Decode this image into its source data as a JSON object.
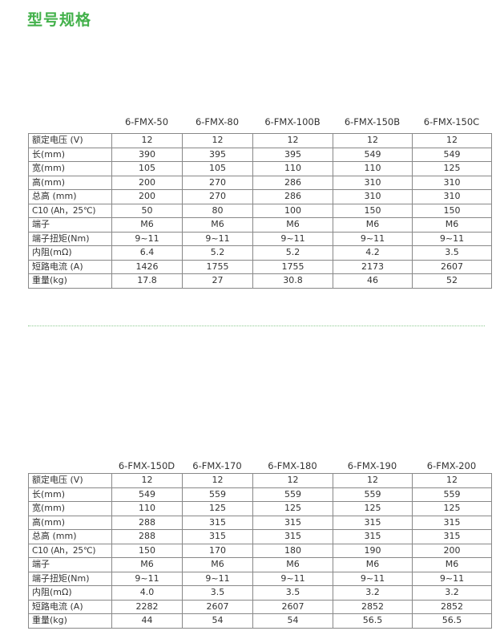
{
  "title": "型号规格",
  "row_labels": [
    "额定电压 (V)",
    "长(mm)",
    "宽(mm)",
    "高(mm)",
    "总高 (mm)",
    "C10 (Ah，25℃)",
    "端子",
    "端子扭矩(Nm)",
    "内阻(mΩ)",
    "短路电流 (A)",
    "重量(kg)"
  ],
  "c10_label": {
    "main": "C",
    "sub": "10",
    "rest": " (Ah，25℃)"
  },
  "tables": [
    {
      "models": [
        "6-FMX-50",
        "6-FMX-80",
        "6-FMX-100B",
        "6-FMX-150B",
        "6-FMX-150C"
      ],
      "rows": [
        [
          "12",
          "12",
          "12",
          "12",
          "12"
        ],
        [
          "390",
          "395",
          "395",
          "549",
          "549"
        ],
        [
          "105",
          "105",
          "110",
          "110",
          "125"
        ],
        [
          "200",
          "270",
          "286",
          "310",
          "310"
        ],
        [
          "200",
          "270",
          "286",
          "310",
          "310"
        ],
        [
          "50",
          "80",
          "100",
          "150",
          "150"
        ],
        [
          "M6",
          "M6",
          "M6",
          "M6",
          "M6"
        ],
        [
          "9~11",
          "9~11",
          "9~11",
          "9~11",
          "9~11"
        ],
        [
          "6.4",
          "5.2",
          "5.2",
          "4.2",
          "3.5"
        ],
        [
          "1426",
          "1755",
          "1755",
          "2173",
          "2607"
        ],
        [
          "17.8",
          "27",
          "30.8",
          "46",
          "52"
        ]
      ]
    },
    {
      "models": [
        "6-FMX-150D",
        "6-FMX-170",
        "6-FMX-180",
        "6-FMX-190",
        "6-FMX-200"
      ],
      "rows": [
        [
          "12",
          "12",
          "12",
          "12",
          "12"
        ],
        [
          "549",
          "559",
          "559",
          "559",
          "559"
        ],
        [
          "110",
          "125",
          "125",
          "125",
          "125"
        ],
        [
          "288",
          "315",
          "315",
          "315",
          "315"
        ],
        [
          "288",
          "315",
          "315",
          "315",
          "315"
        ],
        [
          "150",
          "170",
          "180",
          "190",
          "200"
        ],
        [
          "M6",
          "M6",
          "M6",
          "M6",
          "M6"
        ],
        [
          "9~11",
          "9~11",
          "9~11",
          "9~11",
          "9~11"
        ],
        [
          "4.0",
          "3.5",
          "3.5",
          "3.2",
          "3.2"
        ],
        [
          "2282",
          "2607",
          "2607",
          "2852",
          "2852"
        ],
        [
          "44",
          "54",
          "54",
          "56.5",
          "56.5"
        ]
      ]
    }
  ],
  "colors": {
    "title": "#43b14b",
    "border": "#888888",
    "battery": "#d9d9db",
    "separator": "#8cc98f"
  }
}
